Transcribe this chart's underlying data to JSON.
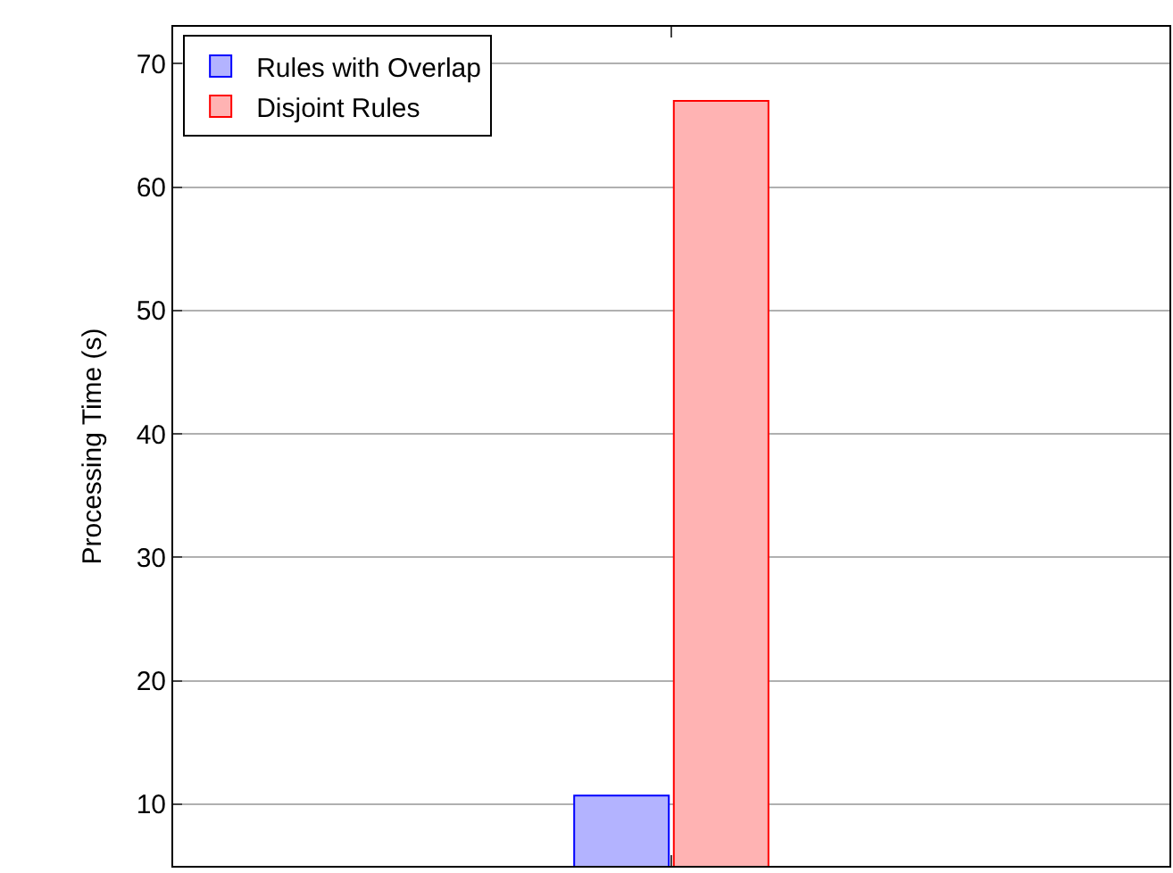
{
  "chart_data": {
    "type": "bar",
    "ylabel": "Processing Time (s)",
    "categories": [
      null
    ],
    "series": [
      {
        "name": "Rules with Overlap",
        "color": "#b3b3ff",
        "values": [
          10.7
        ]
      },
      {
        "name": "Disjoint Rules",
        "color": "#ffb3b3",
        "values": [
          67
        ]
      }
    ],
    "ylim": [
      5,
      73
    ],
    "yticks": [
      10,
      20,
      30,
      40,
      50,
      60,
      70
    ],
    "grid": "y",
    "legend": "top left"
  }
}
